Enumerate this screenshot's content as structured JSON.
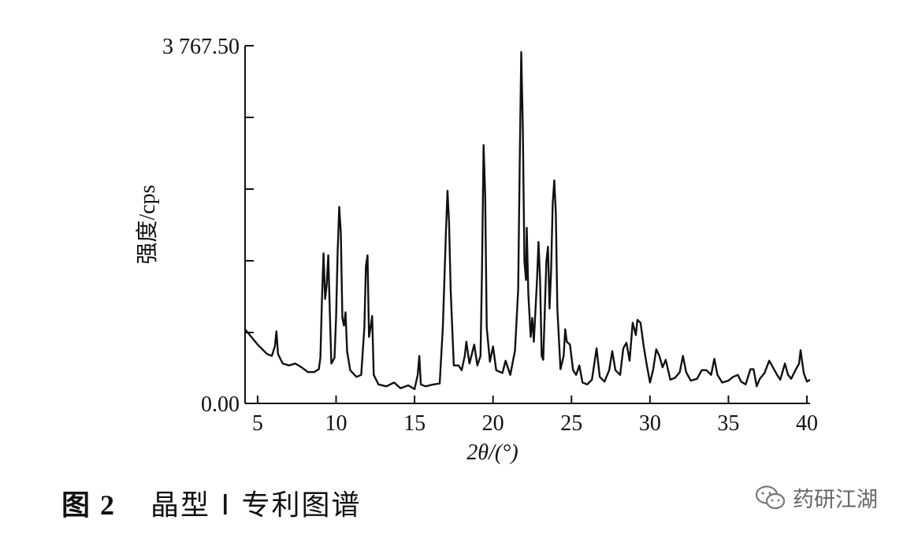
{
  "chart_data": {
    "type": "line",
    "xlabel": "2θ/(°)",
    "ylabel": "强度/cps",
    "xlim": [
      4.2,
      40.2
    ],
    "ylim": [
      0,
      3767.5
    ],
    "x_ticks": [
      "5",
      "10",
      "15",
      "20",
      "25",
      "30",
      "35",
      "40"
    ],
    "y_tick_labels": [
      "0.00",
      "3 767.50"
    ],
    "line_color": "#111111",
    "series": [
      {
        "points": [
          [
            4.2,
            780
          ],
          [
            4.6,
            700
          ],
          [
            5.0,
            620
          ],
          [
            5.3,
            570
          ],
          [
            5.6,
            520
          ],
          [
            5.9,
            500
          ],
          [
            6.1,
            600
          ],
          [
            6.2,
            760
          ],
          [
            6.3,
            520
          ],
          [
            6.6,
            420
          ],
          [
            7.0,
            400
          ],
          [
            7.4,
            420
          ],
          [
            7.8,
            380
          ],
          [
            8.2,
            330
          ],
          [
            8.6,
            330
          ],
          [
            8.9,
            360
          ],
          [
            9.0,
            480
          ],
          [
            9.1,
            1100
          ],
          [
            9.2,
            1580
          ],
          [
            9.3,
            1100
          ],
          [
            9.4,
            1250
          ],
          [
            9.5,
            1560
          ],
          [
            9.6,
            950
          ],
          [
            9.7,
            420
          ],
          [
            9.9,
            480
          ],
          [
            10.0,
            900
          ],
          [
            10.1,
            1600
          ],
          [
            10.2,
            2070
          ],
          [
            10.3,
            1800
          ],
          [
            10.4,
            900
          ],
          [
            10.5,
            820
          ],
          [
            10.6,
            960
          ],
          [
            10.7,
            550
          ],
          [
            10.9,
            350
          ],
          [
            11.3,
            280
          ],
          [
            11.6,
            300
          ],
          [
            11.8,
            800
          ],
          [
            11.9,
            1450
          ],
          [
            12.0,
            1560
          ],
          [
            12.1,
            700
          ],
          [
            12.2,
            800
          ],
          [
            12.3,
            920
          ],
          [
            12.4,
            300
          ],
          [
            12.7,
            200
          ],
          [
            13.2,
            180
          ],
          [
            13.7,
            220
          ],
          [
            14.1,
            160
          ],
          [
            14.6,
            190
          ],
          [
            15.0,
            150
          ],
          [
            15.2,
            300
          ],
          [
            15.3,
            500
          ],
          [
            15.4,
            200
          ],
          [
            15.7,
            180
          ],
          [
            16.2,
            200
          ],
          [
            16.6,
            210
          ],
          [
            16.8,
            800
          ],
          [
            17.0,
            1800
          ],
          [
            17.1,
            2240
          ],
          [
            17.2,
            1900
          ],
          [
            17.3,
            1200
          ],
          [
            17.5,
            400
          ],
          [
            17.8,
            400
          ],
          [
            18.0,
            350
          ],
          [
            18.2,
            500
          ],
          [
            18.3,
            650
          ],
          [
            18.5,
            420
          ],
          [
            18.8,
            620
          ],
          [
            19.0,
            400
          ],
          [
            19.2,
            500
          ],
          [
            19.3,
            1400
          ],
          [
            19.4,
            2720
          ],
          [
            19.5,
            2200
          ],
          [
            19.6,
            800
          ],
          [
            19.8,
            440
          ],
          [
            20.0,
            600
          ],
          [
            20.2,
            350
          ],
          [
            20.6,
            320
          ],
          [
            20.8,
            450
          ],
          [
            21.1,
            300
          ],
          [
            21.4,
            560
          ],
          [
            21.6,
            1200
          ],
          [
            21.7,
            2500
          ],
          [
            21.8,
            3700
          ],
          [
            21.9,
            2900
          ],
          [
            22.0,
            1500
          ],
          [
            22.1,
            1300
          ],
          [
            22.15,
            1850
          ],
          [
            22.25,
            1150
          ],
          [
            22.4,
            700
          ],
          [
            22.5,
            900
          ],
          [
            22.6,
            650
          ],
          [
            22.8,
            1300
          ],
          [
            22.9,
            1700
          ],
          [
            23.0,
            1300
          ],
          [
            23.1,
            500
          ],
          [
            23.2,
            460
          ],
          [
            23.4,
            1500
          ],
          [
            23.5,
            1650
          ],
          [
            23.6,
            1000
          ],
          [
            23.7,
            1400
          ],
          [
            23.8,
            2100
          ],
          [
            23.9,
            2350
          ],
          [
            24.0,
            2000
          ],
          [
            24.1,
            1000
          ],
          [
            24.3,
            360
          ],
          [
            24.5,
            500
          ],
          [
            24.6,
            780
          ],
          [
            24.7,
            650
          ],
          [
            24.9,
            620
          ],
          [
            25.1,
            350
          ],
          [
            25.3,
            300
          ],
          [
            25.5,
            400
          ],
          [
            25.7,
            220
          ],
          [
            26.0,
            200
          ],
          [
            26.3,
            250
          ],
          [
            26.6,
            580
          ],
          [
            26.8,
            280
          ],
          [
            27.1,
            230
          ],
          [
            27.4,
            350
          ],
          [
            27.6,
            550
          ],
          [
            27.8,
            350
          ],
          [
            28.1,
            300
          ],
          [
            28.3,
            580
          ],
          [
            28.5,
            640
          ],
          [
            28.7,
            450
          ],
          [
            28.9,
            850
          ],
          [
            29.1,
            720
          ],
          [
            29.2,
            880
          ],
          [
            29.4,
            850
          ],
          [
            29.6,
            600
          ],
          [
            29.8,
            400
          ],
          [
            30.0,
            220
          ],
          [
            30.2,
            350
          ],
          [
            30.4,
            570
          ],
          [
            30.6,
            500
          ],
          [
            30.8,
            380
          ],
          [
            31.0,
            460
          ],
          [
            31.3,
            250
          ],
          [
            31.6,
            270
          ],
          [
            31.9,
            330
          ],
          [
            32.1,
            500
          ],
          [
            32.3,
            330
          ],
          [
            32.6,
            240
          ],
          [
            33.0,
            260
          ],
          [
            33.3,
            350
          ],
          [
            33.6,
            350
          ],
          [
            33.9,
            300
          ],
          [
            34.1,
            470
          ],
          [
            34.3,
            300
          ],
          [
            34.6,
            220
          ],
          [
            35.0,
            240
          ],
          [
            35.3,
            280
          ],
          [
            35.6,
            300
          ],
          [
            35.8,
            230
          ],
          [
            36.1,
            200
          ],
          [
            36.4,
            360
          ],
          [
            36.6,
            360
          ],
          [
            36.8,
            180
          ],
          [
            37.0,
            260
          ],
          [
            37.3,
            320
          ],
          [
            37.6,
            450
          ],
          [
            37.9,
            360
          ],
          [
            38.1,
            300
          ],
          [
            38.3,
            250
          ],
          [
            38.6,
            420
          ],
          [
            38.8,
            300
          ],
          [
            39.0,
            260
          ],
          [
            39.3,
            360
          ],
          [
            39.5,
            420
          ],
          [
            39.6,
            560
          ],
          [
            39.8,
            320
          ],
          [
            40.0,
            230
          ],
          [
            40.2,
            250
          ]
        ]
      }
    ]
  },
  "caption": {
    "number": "图 2",
    "text": "晶型 I 专利图谱"
  },
  "watermark": {
    "text": "药研江湖",
    "icon": "wechat-icon"
  }
}
